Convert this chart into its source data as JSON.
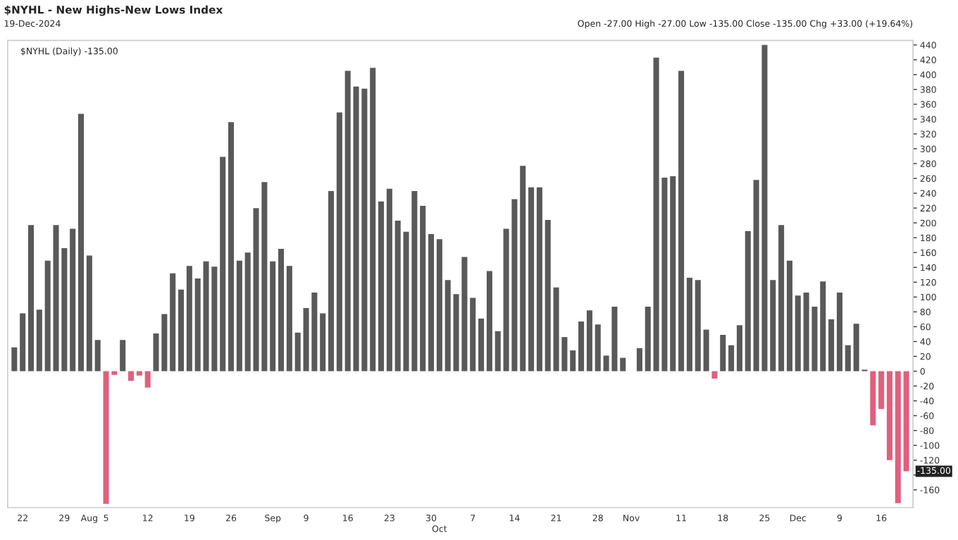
{
  "chart_data": {
    "type": "bar",
    "title": "$NYHL - New Highs-New Lows Index",
    "annotations": [
      "19-Dec-2024",
      "$NYHL (Daily) -135.00",
      "Open -27.00 High -27.00 Low -135.00 Close -135.00 Chg +33.00 (+19.64%)",
      {
        "text": "-135.00",
        "y": -135
      }
    ],
    "categories": [
      null,
      "22",
      null,
      null,
      null,
      null,
      "29",
      null,
      null,
      "Aug",
      null,
      "5",
      null,
      null,
      null,
      null,
      "12",
      null,
      null,
      null,
      null,
      "19",
      null,
      null,
      null,
      null,
      "26",
      null,
      null,
      null,
      null,
      "Sep",
      null,
      null,
      null,
      "9",
      null,
      null,
      null,
      null,
      "16",
      null,
      null,
      null,
      null,
      "23",
      null,
      null,
      null,
      null,
      "30",
      "Oct",
      null,
      null,
      null,
      "7",
      null,
      null,
      null,
      null,
      "14",
      null,
      null,
      null,
      null,
      "21",
      null,
      null,
      null,
      null,
      "28",
      null,
      null,
      null,
      "Nov",
      null,
      null,
      null,
      null,
      null,
      "11",
      null,
      null,
      null,
      null,
      "18",
      null,
      null,
      null,
      null,
      "25",
      null,
      null,
      null,
      "Dec",
      null,
      null,
      null,
      null,
      "9",
      null,
      null,
      null,
      null,
      "16",
      null,
      null,
      null
    ],
    "values": [
      32,
      78,
      197,
      83,
      149,
      197,
      166,
      192,
      347,
      156,
      42,
      -179,
      -5,
      42,
      -13,
      -6,
      -22,
      51,
      77,
      132,
      110,
      142,
      125,
      148,
      141,
      289,
      336,
      149,
      160,
      220,
      255,
      148,
      165,
      142,
      52,
      85,
      106,
      78,
      243,
      349,
      405,
      384,
      381,
      409,
      229,
      246,
      203,
      188,
      243,
      223,
      185,
      178,
      123,
      104,
      154,
      99,
      71,
      135,
      54,
      192,
      232,
      277,
      248,
      248,
      204,
      113,
      46,
      28,
      67,
      82,
      63,
      21,
      87,
      18,
      0,
      31,
      87,
      423,
      261,
      263,
      405,
      126,
      123,
      56,
      -10,
      49,
      35,
      62,
      189,
      258,
      440,
      123,
      197,
      149,
      102,
      106,
      87,
      121,
      70,
      106,
      35,
      64,
      2,
      -73,
      -51,
      -120,
      -178,
      -135
    ],
    "colors": [
      "#595959",
      "#595959",
      "#595959",
      "#595959",
      "#595959",
      "#595959",
      "#595959",
      "#595959",
      "#595959",
      "#595959",
      "#595959",
      "#e0607e",
      "#e0607e",
      "#595959",
      "#e0607e",
      "#e0607e",
      "#e0607e",
      "#595959",
      "#595959",
      "#595959",
      "#595959",
      "#595959",
      "#595959",
      "#595959",
      "#595959",
      "#595959",
      "#595959",
      "#595959",
      "#595959",
      "#595959",
      "#595959",
      "#595959",
      "#595959",
      "#595959",
      "#595959",
      "#595959",
      "#595959",
      "#595959",
      "#595959",
      "#595959",
      "#595959",
      "#595959",
      "#595959",
      "#595959",
      "#595959",
      "#595959",
      "#595959",
      "#595959",
      "#595959",
      "#595959",
      "#595959",
      "#595959",
      "#595959",
      "#595959",
      "#595959",
      "#595959",
      "#595959",
      "#595959",
      "#595959",
      "#595959",
      "#595959",
      "#595959",
      "#595959",
      "#595959",
      "#595959",
      "#595959",
      "#595959",
      "#595959",
      "#595959",
      "#595959",
      "#595959",
      "#595959",
      "#595959",
      "#595959",
      "#595959",
      "#595959",
      "#595959",
      "#595959",
      "#595959",
      "#595959",
      "#595959",
      "#595959",
      "#595959",
      "#595959",
      "#e0607e",
      "#595959",
      "#595959",
      "#595959",
      "#595959",
      "#595959",
      "#595959",
      "#595959",
      "#595959",
      "#595959",
      "#595959",
      "#595959",
      "#595959",
      "#595959",
      "#595959",
      "#595959",
      "#595959",
      "#595959",
      "#595959",
      "#e0607e",
      "#e0607e",
      "#e0607e",
      "#e0607e",
      "#e0607e"
    ],
    "ylim": [
      -184,
      446
    ],
    "yticks": [
      -160,
      {
        "value": -140,
        "label": null
      },
      -120,
      -100,
      -80,
      -60,
      -40,
      -20,
      0,
      20,
      40,
      60,
      80,
      100,
      120,
      140,
      160,
      180,
      200,
      220,
      240,
      260,
      280,
      300,
      320,
      340,
      360,
      380,
      400,
      420,
      440
    ],
    "grid": false
  }
}
